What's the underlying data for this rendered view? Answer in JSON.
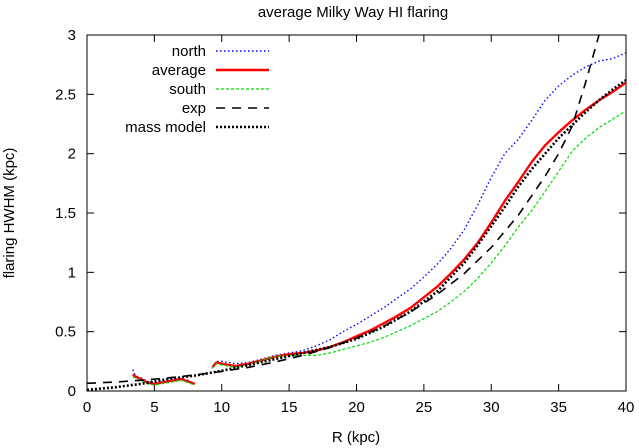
{
  "chart_data": {
    "type": "line",
    "title": "average Milky Way HI flaring",
    "xlabel": "R (kpc)",
    "ylabel": "flaring HWHM (kpc)",
    "xlim": [
      0,
      40
    ],
    "ylim": [
      0,
      3
    ],
    "xticks": [
      "0",
      "5",
      "10",
      "15",
      "20",
      "25",
      "30",
      "35",
      "40"
    ],
    "yticks": [
      "0",
      "0.5",
      "1",
      "1.5",
      "2",
      "2.5",
      "3"
    ],
    "grid": false,
    "legend_position": "top-left",
    "series": [
      {
        "name": "north",
        "color": "#0000ff",
        "style": "dotted",
        "segments": [
          [
            [
              3.4,
              0.18
            ],
            [
              3.6,
              0.13
            ],
            [
              4.0,
              0.11
            ],
            [
              4.5,
              0.08
            ],
            [
              5.0,
              0.07
            ],
            [
              5.5,
              0.08
            ],
            [
              6.0,
              0.09
            ],
            [
              6.5,
              0.1
            ],
            [
              7.0,
              0.1
            ],
            [
              7.5,
              0.09
            ],
            [
              8.0,
              0.06
            ]
          ],
          [
            [
              9.3,
              0.2
            ],
            [
              9.6,
              0.25
            ],
            [
              10,
              0.25
            ],
            [
              10.5,
              0.24
            ],
            [
              11,
              0.23
            ],
            [
              12,
              0.24
            ],
            [
              13,
              0.27
            ],
            [
              14,
              0.3
            ],
            [
              15,
              0.32
            ],
            [
              16,
              0.34
            ],
            [
              17,
              0.38
            ],
            [
              18,
              0.43
            ],
            [
              19,
              0.5
            ],
            [
              20,
              0.56
            ],
            [
              21,
              0.63
            ],
            [
              22,
              0.7
            ],
            [
              23,
              0.78
            ],
            [
              24,
              0.86
            ],
            [
              25,
              0.96
            ],
            [
              26,
              1.07
            ],
            [
              27,
              1.2
            ],
            [
              28,
              1.36
            ],
            [
              29,
              1.57
            ],
            [
              30,
              1.8
            ],
            [
              31,
              2.0
            ],
            [
              32,
              2.12
            ],
            [
              33,
              2.28
            ],
            [
              34,
              2.45
            ],
            [
              35,
              2.57
            ],
            [
              36,
              2.66
            ],
            [
              37,
              2.73
            ],
            [
              38,
              2.78
            ],
            [
              39,
              2.8
            ],
            [
              40,
              2.85
            ]
          ]
        ]
      },
      {
        "name": "average",
        "color": "#ff0000",
        "style": "solid",
        "segments": [
          [
            [
              3.4,
              0.14
            ],
            [
              3.6,
              0.12
            ],
            [
              4.0,
              0.1
            ],
            [
              4.5,
              0.07
            ],
            [
              5.0,
              0.06
            ],
            [
              5.5,
              0.07
            ],
            [
              6.0,
              0.08
            ],
            [
              6.5,
              0.09
            ],
            [
              7.0,
              0.1
            ],
            [
              7.5,
              0.08
            ],
            [
              8.0,
              0.06
            ]
          ],
          [
            [
              9.3,
              0.2
            ],
            [
              9.6,
              0.24
            ],
            [
              10,
              0.23
            ],
            [
              10.5,
              0.22
            ],
            [
              11,
              0.21
            ],
            [
              12,
              0.23
            ],
            [
              13,
              0.26
            ],
            [
              14,
              0.29
            ],
            [
              15,
              0.31
            ],
            [
              16,
              0.32
            ],
            [
              17,
              0.34
            ],
            [
              18,
              0.37
            ],
            [
              19,
              0.41
            ],
            [
              20,
              0.46
            ],
            [
              21,
              0.51
            ],
            [
              22,
              0.57
            ],
            [
              23,
              0.63
            ],
            [
              24,
              0.7
            ],
            [
              25,
              0.79
            ],
            [
              26,
              0.88
            ],
            [
              27,
              0.99
            ],
            [
              28,
              1.11
            ],
            [
              29,
              1.25
            ],
            [
              30,
              1.42
            ],
            [
              31,
              1.6
            ],
            [
              32,
              1.76
            ],
            [
              33,
              1.93
            ],
            [
              34,
              2.07
            ],
            [
              35,
              2.18
            ],
            [
              36,
              2.28
            ],
            [
              37,
              2.37
            ],
            [
              38,
              2.45
            ],
            [
              39,
              2.52
            ],
            [
              40,
              2.6
            ]
          ]
        ]
      },
      {
        "name": "south",
        "color": "#00dd00",
        "style": "dashed",
        "segments": [
          [
            [
              3.4,
              0.12
            ],
            [
              3.6,
              0.11
            ],
            [
              4.0,
              0.09
            ],
            [
              4.5,
              0.06
            ],
            [
              5.0,
              0.05
            ],
            [
              5.5,
              0.06
            ],
            [
              6.0,
              0.07
            ],
            [
              6.5,
              0.08
            ],
            [
              7.0,
              0.09
            ],
            [
              7.5,
              0.07
            ],
            [
              8.0,
              0.05
            ]
          ],
          [
            [
              9.3,
              0.19
            ],
            [
              9.6,
              0.23
            ],
            [
              10,
              0.22
            ],
            [
              10.5,
              0.21
            ],
            [
              11,
              0.2
            ],
            [
              12,
              0.22
            ],
            [
              13,
              0.26
            ],
            [
              14,
              0.29
            ],
            [
              15,
              0.3
            ],
            [
              16,
              0.3
            ],
            [
              17,
              0.3
            ],
            [
              18,
              0.32
            ],
            [
              19,
              0.35
            ],
            [
              20,
              0.38
            ],
            [
              21,
              0.41
            ],
            [
              22,
              0.45
            ],
            [
              23,
              0.5
            ],
            [
              24,
              0.55
            ],
            [
              25,
              0.61
            ],
            [
              26,
              0.67
            ],
            [
              27,
              0.75
            ],
            [
              28,
              0.84
            ],
            [
              29,
              0.95
            ],
            [
              30,
              1.08
            ],
            [
              31,
              1.22
            ],
            [
              32,
              1.38
            ],
            [
              33,
              1.52
            ],
            [
              34,
              1.68
            ],
            [
              35,
              1.85
            ],
            [
              36,
              2.02
            ],
            [
              37,
              2.13
            ],
            [
              38,
              2.22
            ],
            [
              39,
              2.29
            ],
            [
              40,
              2.36
            ]
          ]
        ]
      },
      {
        "name": "exp",
        "color": "#000000",
        "style": "long-dashed",
        "segments": [
          [
            [
              0,
              0.065
            ],
            [
              2,
              0.075
            ],
            [
              4,
              0.09
            ],
            [
              6,
              0.11
            ],
            [
              8,
              0.135
            ],
            [
              10,
              0.165
            ],
            [
              12,
              0.2
            ],
            [
              14,
              0.245
            ],
            [
              16,
              0.3
            ],
            [
              18,
              0.365
            ],
            [
              20,
              0.445
            ],
            [
              22,
              0.545
            ],
            [
              24,
              0.665
            ],
            [
              26,
              0.815
            ],
            [
              28,
              0.99
            ],
            [
              30,
              1.21
            ],
            [
              32,
              1.48
            ],
            [
              34,
              1.81
            ],
            [
              35,
              2.0
            ],
            [
              36,
              2.23
            ],
            [
              37,
              2.6
            ],
            [
              38,
              3.0
            ]
          ]
        ]
      },
      {
        "name": "mass model",
        "color": "#000000",
        "style": "dotted-thick",
        "segments": [
          [
            [
              0,
              0.01
            ],
            [
              2,
              0.03
            ],
            [
              4,
              0.06
            ],
            [
              6,
              0.1
            ],
            [
              8,
              0.13
            ],
            [
              10,
              0.17
            ],
            [
              12,
              0.22
            ],
            [
              14,
              0.27
            ],
            [
              16,
              0.32
            ],
            [
              18,
              0.37
            ],
            [
              20,
              0.44
            ],
            [
              22,
              0.54
            ],
            [
              24,
              0.67
            ],
            [
              26,
              0.84
            ],
            [
              28,
              1.08
            ],
            [
              29,
              1.23
            ],
            [
              30,
              1.39
            ],
            [
              31,
              1.55
            ],
            [
              32,
              1.72
            ],
            [
              33,
              1.87
            ],
            [
              34,
              2.0
            ],
            [
              35,
              2.13
            ],
            [
              36,
              2.24
            ],
            [
              37,
              2.35
            ],
            [
              38,
              2.45
            ],
            [
              39,
              2.54
            ],
            [
              40,
              2.62
            ]
          ]
        ]
      }
    ]
  }
}
